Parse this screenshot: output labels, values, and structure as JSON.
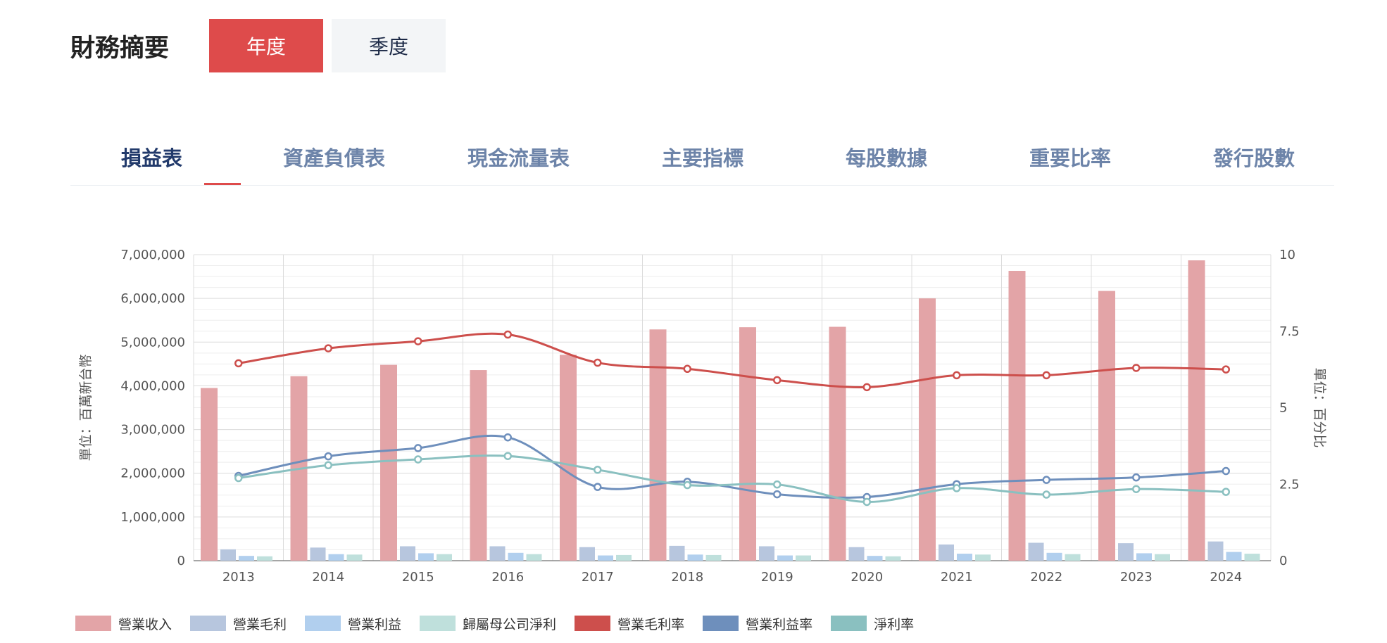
{
  "header": {
    "title": "財務摘要",
    "period_buttons": [
      {
        "label": "年度",
        "active": true
      },
      {
        "label": "季度",
        "active": false
      }
    ]
  },
  "tabs": [
    {
      "label": "損益表",
      "active": true
    },
    {
      "label": "資產負債表",
      "active": false
    },
    {
      "label": "現金流量表",
      "active": false
    },
    {
      "label": "主要指標",
      "active": false
    },
    {
      "label": "每股數據",
      "active": false
    },
    {
      "label": "重要比率",
      "active": false
    },
    {
      "label": "發行股數",
      "active": false
    }
  ],
  "colors": {
    "accent": "#de4b4b",
    "tab_active": "#223a6b",
    "tab_inactive": "#6d84a9"
  },
  "chart_data": {
    "type": "bar",
    "categories": [
      "2013",
      "2014",
      "2015",
      "2016",
      "2017",
      "2018",
      "2019",
      "2020",
      "2021",
      "2022",
      "2023",
      "2024"
    ],
    "ylabel": "單位：百萬新台幣",
    "y2label": "單位：百分比",
    "ylim": [
      0,
      7000000
    ],
    "y2lim": [
      0,
      10
    ],
    "yticks": [
      "0",
      "1,000,000",
      "2,000,000",
      "3,000,000",
      "4,000,000",
      "5,000,000",
      "6,000,000",
      "7,000,000"
    ],
    "y2ticks": [
      "0",
      "2.5",
      "5",
      "7.5",
      "10"
    ],
    "grid": true,
    "legend_position": "bottom-left",
    "bar_series": [
      {
        "name": "營業收入",
        "color": "#e3a4a7",
        "values": [
          3950000,
          4220000,
          4480000,
          4360000,
          4710000,
          5290000,
          5340000,
          5350000,
          6000000,
          6630000,
          6170000,
          6870000
        ]
      },
      {
        "name": "營業毛利",
        "color": "#b7c6de",
        "values": [
          260000,
          300000,
          330000,
          330000,
          310000,
          340000,
          330000,
          310000,
          370000,
          410000,
          400000,
          440000
        ]
      },
      {
        "name": "營業利益",
        "color": "#b1cfee",
        "values": [
          110000,
          150000,
          170000,
          180000,
          120000,
          140000,
          120000,
          110000,
          160000,
          180000,
          170000,
          200000
        ]
      },
      {
        "name": "歸屬母公司淨利",
        "color": "#bfe0dc",
        "values": [
          100000,
          140000,
          150000,
          150000,
          130000,
          130000,
          120000,
          100000,
          140000,
          150000,
          150000,
          160000
        ]
      }
    ],
    "line_series": [
      {
        "name": "營業毛利率",
        "color": "#cd4f4c",
        "values": [
          6.45,
          6.94,
          7.17,
          7.39,
          6.47,
          6.27,
          5.9,
          5.67,
          6.06,
          6.06,
          6.3,
          6.25
        ]
      },
      {
        "name": "營業利益率",
        "color": "#6e8fbc",
        "values": [
          2.77,
          3.41,
          3.68,
          4.03,
          2.41,
          2.58,
          2.17,
          2.08,
          2.5,
          2.64,
          2.72,
          2.93
        ]
      },
      {
        "name": "淨利率",
        "color": "#8ac0c0",
        "values": [
          2.7,
          3.12,
          3.31,
          3.42,
          2.97,
          2.47,
          2.49,
          1.92,
          2.37,
          2.16,
          2.34,
          2.25
        ]
      }
    ]
  }
}
